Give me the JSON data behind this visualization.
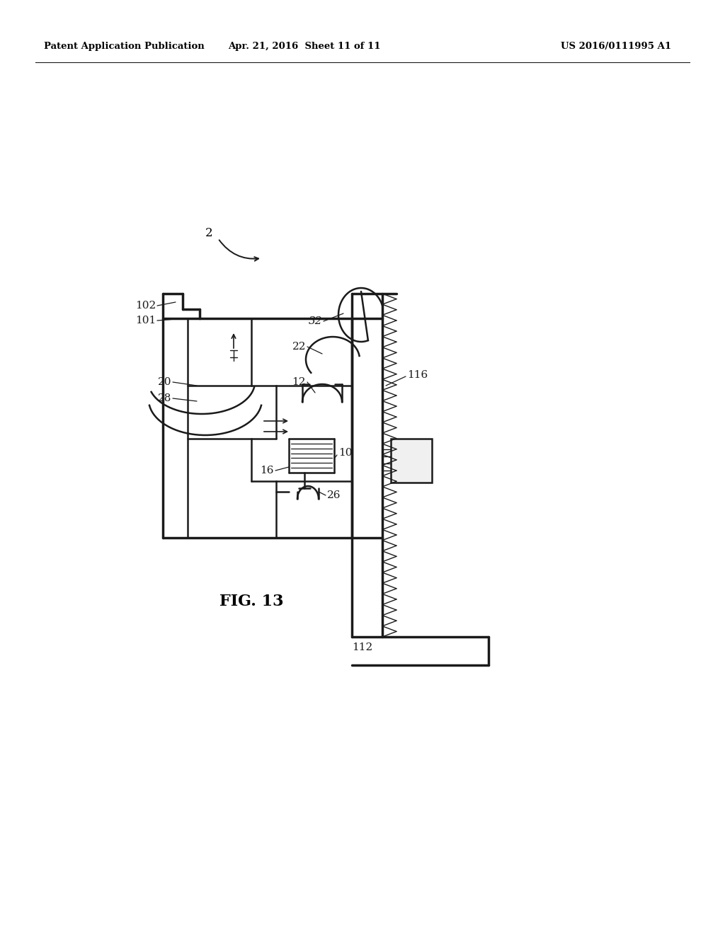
{
  "background_color": "#ffffff",
  "header_left": "Patent Application Publication",
  "header_center": "Apr. 21, 2016  Sheet 11 of 11",
  "header_right": "US 2016/0111995 A1",
  "fig_label": "FIG. 13",
  "line_color": "#1a1a1a",
  "text_color": "#000000",
  "lw_main": 1.8,
  "lw_thin": 1.2,
  "lw_thick": 2.5
}
